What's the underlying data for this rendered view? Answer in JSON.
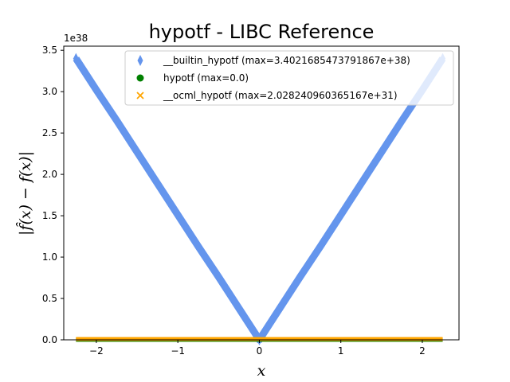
{
  "chart_data": {
    "type": "scatter",
    "title": "hypotf - LIBC Reference",
    "xlabel": "x",
    "ylabel": "|f̂(x) − f(x)|",
    "y_offset_label": "1e38",
    "xlim": [
      -2.4,
      2.45
    ],
    "ylim": [
      0,
      3.55
    ],
    "x_ticks": [
      {
        "value": -2,
        "label": "−2"
      },
      {
        "value": -1,
        "label": "−1"
      },
      {
        "value": 0,
        "label": "0"
      },
      {
        "value": 1,
        "label": "1"
      },
      {
        "value": 2,
        "label": "2"
      }
    ],
    "y_ticks": [
      {
        "value": 0.0,
        "label": "0.0"
      },
      {
        "value": 0.5,
        "label": "0.5"
      },
      {
        "value": 1.0,
        "label": "1.0"
      },
      {
        "value": 1.5,
        "label": "1.5"
      },
      {
        "value": 2.0,
        "label": "2.0"
      },
      {
        "value": 2.5,
        "label": "2.5"
      },
      {
        "value": 3.0,
        "label": "3.0"
      },
      {
        "value": 3.5,
        "label": "3.5"
      }
    ],
    "legend_position": "top-right",
    "series": [
      {
        "name": "__builtin_hypotf (max=3.4021685473791867e+38)",
        "marker": "thin-diamond",
        "color": "#6495ED",
        "x": [
          -2.25,
          -2.0,
          -1.75,
          -1.5,
          -1.25,
          -1.0,
          -0.75,
          -0.5,
          -0.25,
          0.0,
          0.25,
          0.5,
          0.75,
          1.0,
          1.25,
          1.5,
          1.75,
          2.0,
          2.25
        ],
        "y": [
          3.4,
          3.02,
          2.65,
          2.27,
          1.89,
          1.51,
          1.13,
          0.76,
          0.38,
          0.0,
          0.38,
          0.76,
          1.13,
          1.51,
          1.89,
          2.27,
          2.65,
          3.02,
          3.4
        ]
      },
      {
        "name": "hypotf (max=0.0)",
        "marker": "circle",
        "color": "#008000",
        "x": [
          -2.25,
          2.25
        ],
        "y": [
          0.0,
          0.0
        ]
      },
      {
        "name": "__ocml_hypotf (max=2.028240960365167e+31)",
        "marker": "x",
        "color": "#FFA500",
        "x": [
          -2.25,
          2.25
        ],
        "y": [
          0.0,
          0.0
        ]
      }
    ]
  }
}
